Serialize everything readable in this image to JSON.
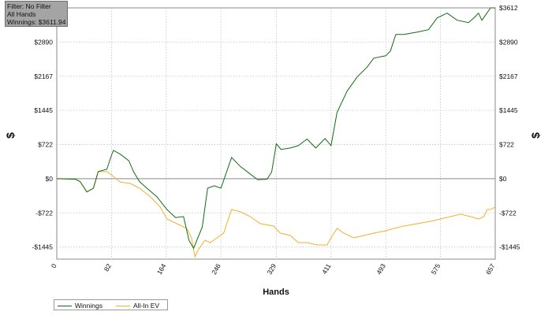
{
  "info": {
    "filter": "Filter: No Filter",
    "scope": "All Hands",
    "winnings": "Winnings: $3611.94"
  },
  "colors": {
    "winnings": "#126c12",
    "allin_ev": "#f0b030",
    "grid": "#c4c4c4",
    "zero_line": "#8a8a8a"
  },
  "chart_data": {
    "type": "line",
    "xlabel": "Hands",
    "ylabel_left": "$",
    "ylabel_right": "$",
    "xlim": [
      0,
      657
    ],
    "ylim": [
      -1700,
      3612
    ],
    "x_ticks": [
      0,
      82,
      164,
      246,
      329,
      411,
      493,
      575,
      657
    ],
    "y_ticks": [
      {
        "value": 3612,
        "label": "$3612"
      },
      {
        "value": 2890,
        "label": "$2890"
      },
      {
        "value": 2167,
        "label": "$2167"
      },
      {
        "value": 1445,
        "label": "$1445"
      },
      {
        "value": 722,
        "label": "$722"
      },
      {
        "value": 0,
        "label": "$0"
      },
      {
        "value": -722,
        "label": "-$722"
      },
      {
        "value": -1445,
        "label": "-$1445"
      }
    ],
    "grid": true,
    "legend_position": "bottom-left",
    "series": [
      {
        "name": "Winnings",
        "color": "#126c12",
        "points": [
          [
            0,
            0
          ],
          [
            28,
            -10
          ],
          [
            35,
            -60
          ],
          [
            45,
            -280
          ],
          [
            55,
            -200
          ],
          [
            62,
            150
          ],
          [
            75,
            200
          ],
          [
            82,
            500
          ],
          [
            85,
            600
          ],
          [
            95,
            520
          ],
          [
            108,
            380
          ],
          [
            115,
            150
          ],
          [
            124,
            -60
          ],
          [
            135,
            -200
          ],
          [
            150,
            -380
          ],
          [
            165,
            -650
          ],
          [
            178,
            -820
          ],
          [
            190,
            -800
          ],
          [
            198,
            -1300
          ],
          [
            205,
            -1470
          ],
          [
            218,
            -1020
          ],
          [
            226,
            -200
          ],
          [
            236,
            -150
          ],
          [
            246,
            -200
          ],
          [
            262,
            450
          ],
          [
            275,
            260
          ],
          [
            288,
            120
          ],
          [
            301,
            -20
          ],
          [
            315,
            -10
          ],
          [
            322,
            140
          ],
          [
            329,
            740
          ],
          [
            336,
            620
          ],
          [
            350,
            650
          ],
          [
            362,
            700
          ],
          [
            375,
            840
          ],
          [
            388,
            650
          ],
          [
            402,
            850
          ],
          [
            411,
            700
          ],
          [
            420,
            1400
          ],
          [
            435,
            1850
          ],
          [
            450,
            2150
          ],
          [
            465,
            2360
          ],
          [
            475,
            2550
          ],
          [
            493,
            2600
          ],
          [
            500,
            2700
          ],
          [
            508,
            3050
          ],
          [
            520,
            3050
          ],
          [
            540,
            3100
          ],
          [
            557,
            3150
          ],
          [
            570,
            3400
          ],
          [
            585,
            3500
          ],
          [
            600,
            3350
          ],
          [
            617,
            3300
          ],
          [
            625,
            3400
          ],
          [
            632,
            3500
          ],
          [
            637,
            3350
          ],
          [
            650,
            3611.94
          ],
          [
            657,
            3612
          ]
        ]
      },
      {
        "name": "All-In EV",
        "color": "#f0b030",
        "points": [
          [
            0,
            0
          ],
          [
            28,
            -10
          ],
          [
            35,
            -60
          ],
          [
            45,
            -280
          ],
          [
            55,
            -200
          ],
          [
            62,
            150
          ],
          [
            75,
            150
          ],
          [
            82,
            80
          ],
          [
            95,
            -70
          ],
          [
            110,
            -100
          ],
          [
            124,
            -200
          ],
          [
            140,
            -380
          ],
          [
            155,
            -600
          ],
          [
            165,
            -850
          ],
          [
            180,
            -950
          ],
          [
            195,
            -1050
          ],
          [
            202,
            -1250
          ],
          [
            207,
            -1650
          ],
          [
            212,
            -1500
          ],
          [
            222,
            -1300
          ],
          [
            230,
            -1350
          ],
          [
            240,
            -1250
          ],
          [
            250,
            -1150
          ],
          [
            262,
            -650
          ],
          [
            275,
            -700
          ],
          [
            290,
            -800
          ],
          [
            305,
            -950
          ],
          [
            325,
            -1000
          ],
          [
            335,
            -1150
          ],
          [
            350,
            -1200
          ],
          [
            362,
            -1350
          ],
          [
            375,
            -1350
          ],
          [
            390,
            -1400
          ],
          [
            405,
            -1400
          ],
          [
            411,
            -1250
          ],
          [
            420,
            -1050
          ],
          [
            430,
            -1150
          ],
          [
            445,
            -1250
          ],
          [
            460,
            -1200
          ],
          [
            475,
            -1150
          ],
          [
            493,
            -1100
          ],
          [
            505,
            -1050
          ],
          [
            520,
            -1000
          ],
          [
            540,
            -950
          ],
          [
            560,
            -900
          ],
          [
            575,
            -850
          ],
          [
            590,
            -800
          ],
          [
            605,
            -750
          ],
          [
            620,
            -800
          ],
          [
            632,
            -850
          ],
          [
            640,
            -800
          ],
          [
            645,
            -650
          ],
          [
            650,
            -650
          ],
          [
            657,
            -600
          ]
        ]
      }
    ]
  }
}
